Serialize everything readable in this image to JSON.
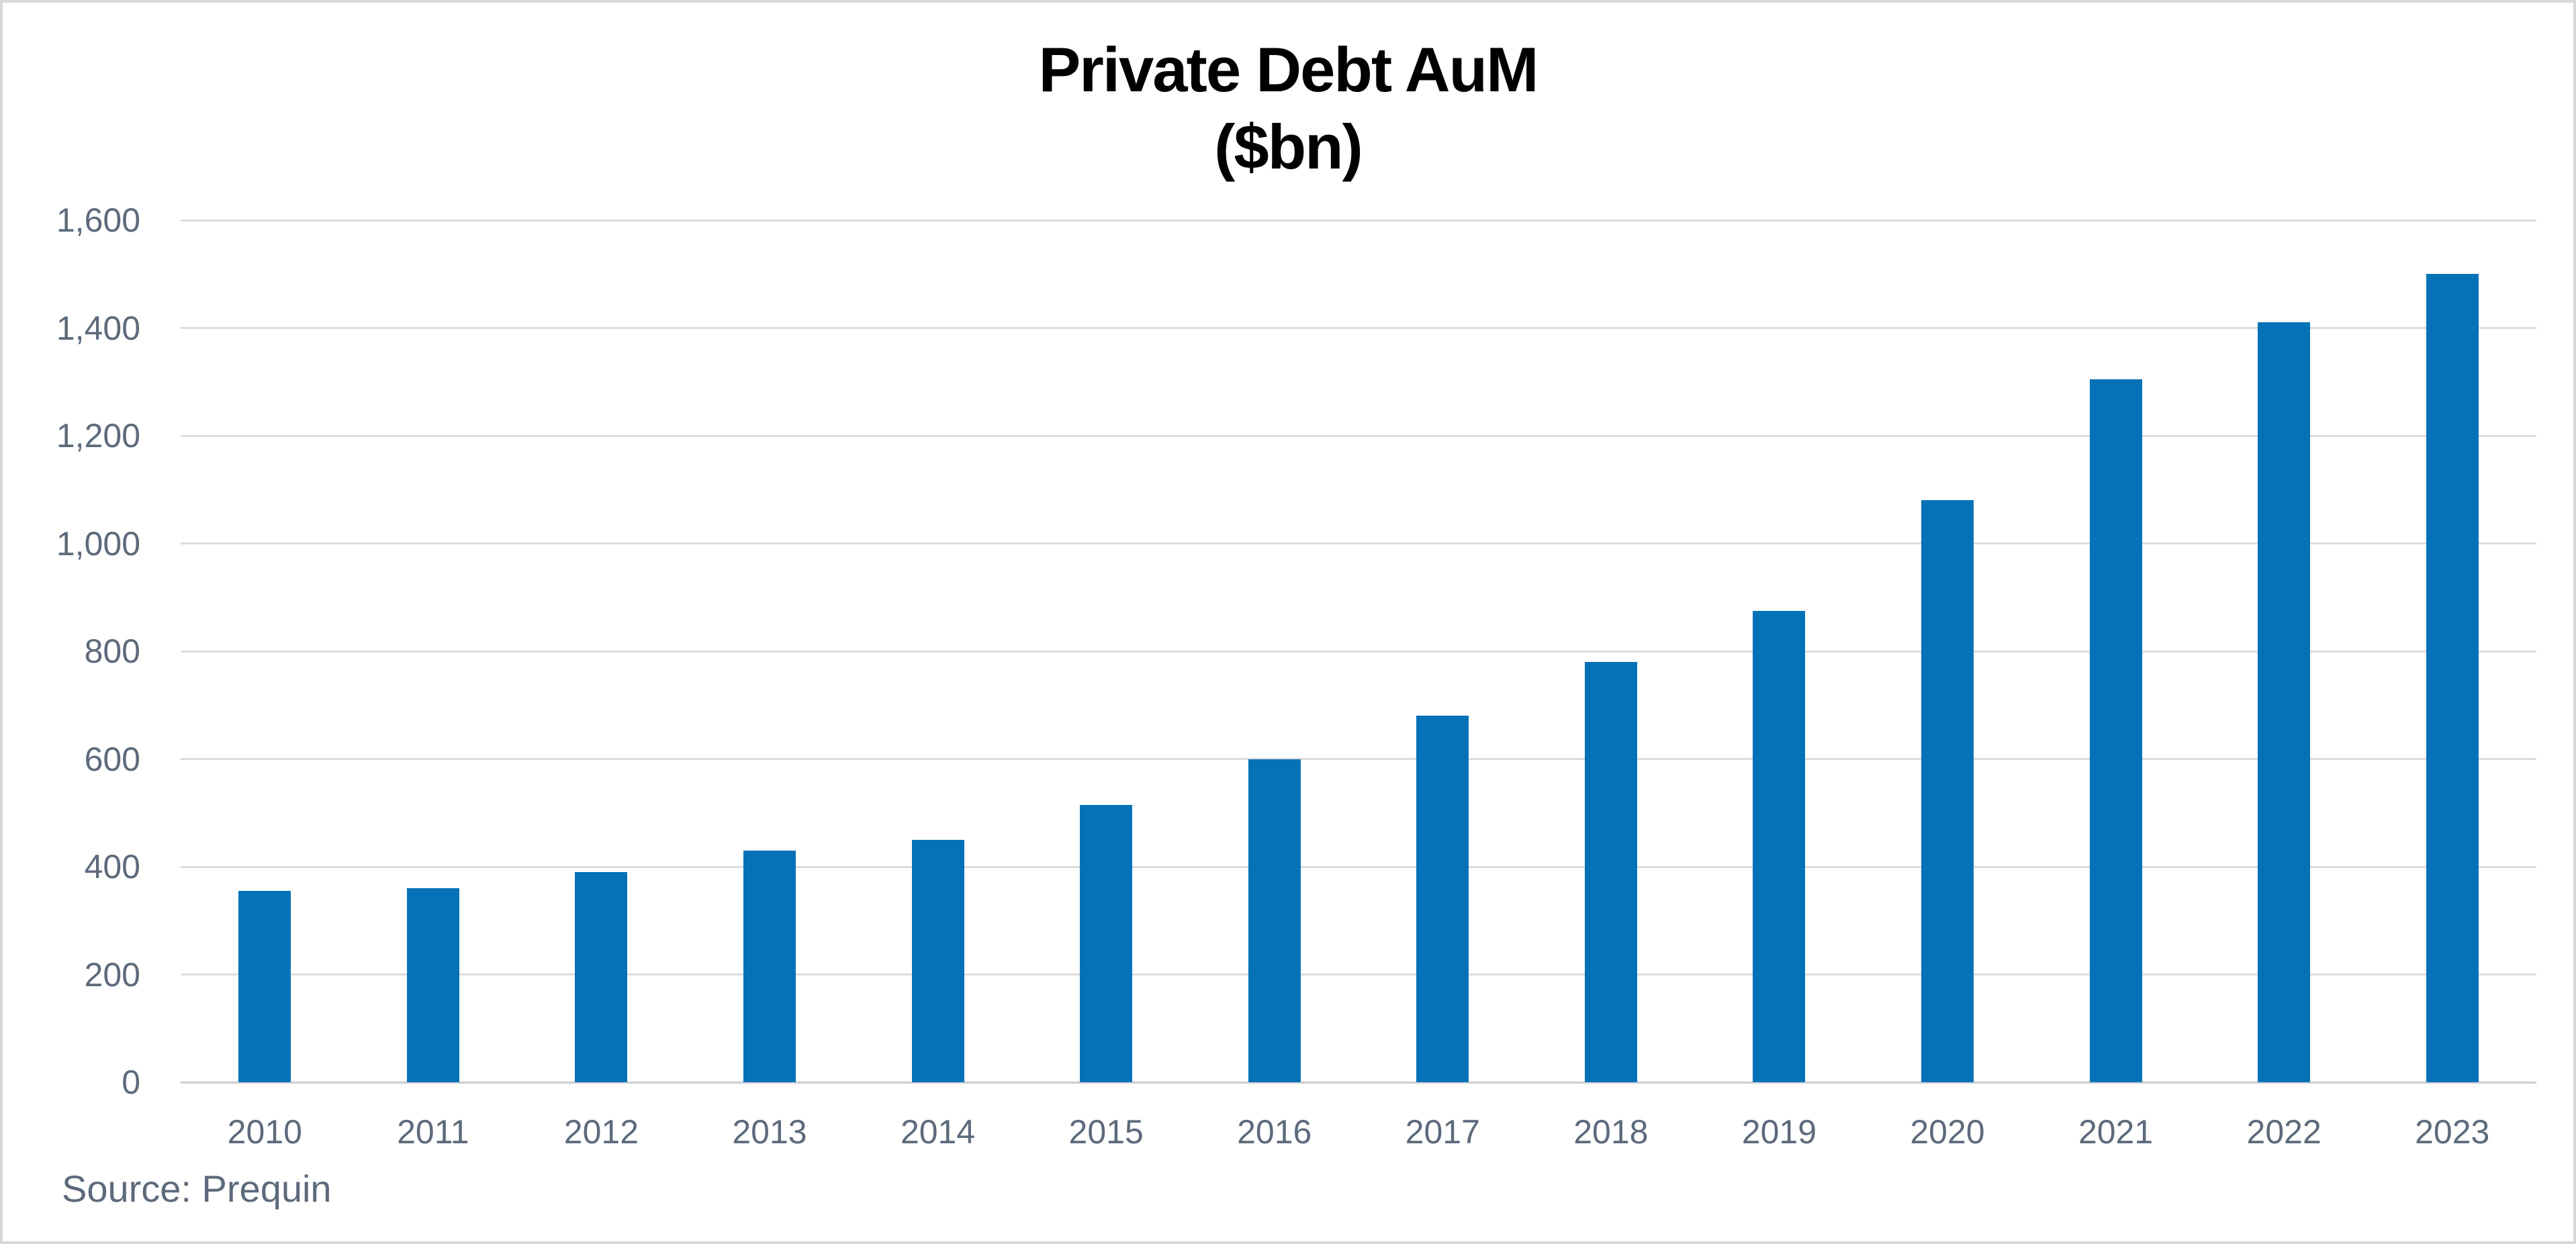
{
  "page": {
    "background": "#ffffff",
    "frame_color": "#d8d8d8"
  },
  "chart_data": {
    "type": "bar",
    "title": "Private Debt AuM",
    "subtitle": "($bn)",
    "categories": [
      "2010",
      "2011",
      "2012",
      "2013",
      "2014",
      "2015",
      "2016",
      "2017",
      "2018",
      "2019",
      "2020",
      "2021",
      "2022",
      "2023"
    ],
    "values": [
      355,
      360,
      390,
      430,
      450,
      515,
      600,
      680,
      780,
      875,
      1080,
      1305,
      1410,
      1500
    ],
    "xlabel": "",
    "ylabel": "",
    "ylim": [
      0,
      1600
    ],
    "ytick_step": 200,
    "ytick_labels": [
      "0",
      "200",
      "400",
      "600",
      "800",
      "1,000",
      "1,200",
      "1,400",
      "1,600"
    ],
    "grid": "horizontal",
    "legend": false,
    "bar_color": "#0572b8",
    "axis_label_color": "#5c6a7b",
    "gridline_color": "#dcdcdc",
    "baseline_color": "#c9cdd0",
    "title_color": "#000000",
    "source_note": "Source: Prequin"
  }
}
